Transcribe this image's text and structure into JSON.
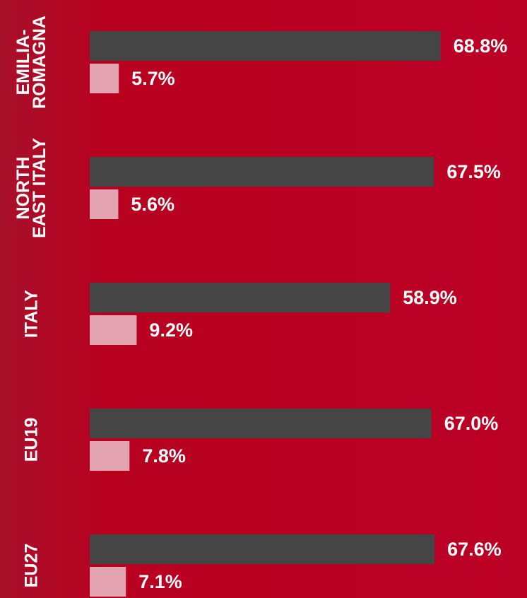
{
  "chart_data": {
    "type": "bar",
    "orientation": "horizontal",
    "categories": [
      "EMILIA-\nROMAGNA",
      "NORTH\nEAST ITALY",
      "ITALY",
      "EU19",
      "EU27"
    ],
    "series": [
      {
        "color": "#454545",
        "values": [
          68.8,
          67.5,
          58.9,
          67.0,
          67.6
        ],
        "value_labels": [
          "68.8%",
          "67.5%",
          "58.9%",
          "67.0%",
          "67.6%"
        ]
      },
      {
        "color": "#e3a3b1",
        "values": [
          5.7,
          5.6,
          9.2,
          7.8,
          7.1
        ],
        "value_labels": [
          "5.7%",
          "5.6%",
          "9.2%",
          "7.8%",
          "7.1%"
        ]
      }
    ]
  }
}
